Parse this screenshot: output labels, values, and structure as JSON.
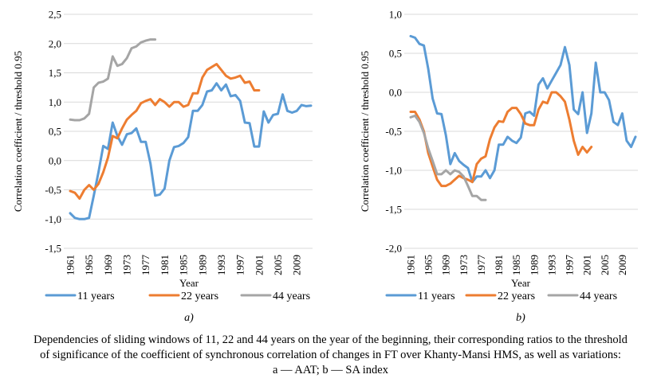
{
  "chart_data": [
    {
      "type": "line",
      "panel_label": "a)",
      "title": "",
      "xlabel": "Year",
      "ylabel": "Correlation coefficient / threshold 0.95",
      "ylim": [
        -1.5,
        2.5
      ],
      "xlim": [
        1961,
        2012
      ],
      "y_ticks": [
        "2,5",
        "2,0",
        "1,5",
        "1,0",
        "0,5",
        "0,0",
        "-0,5",
        "-1,0",
        "-1,5"
      ],
      "x_ticks": [
        "1961",
        "1965",
        "1969",
        "1973",
        "1977",
        "1981",
        "1985",
        "1989",
        "1993",
        "1997",
        "2001",
        "2005",
        "2009"
      ],
      "grid": true,
      "legend": "bottom",
      "series": [
        {
          "name": "11 years",
          "color": "#5b9bd5",
          "x": [
            1961,
            1962,
            1963,
            1964,
            1965,
            1966,
            1967,
            1968,
            1969,
            1970,
            1971,
            1972,
            1973,
            1974,
            1975,
            1976,
            1977,
            1978,
            1979,
            1980,
            1981,
            1982,
            1983,
            1984,
            1985,
            1986,
            1987,
            1988,
            1989,
            1990,
            1991,
            1992,
            1993,
            1994,
            1995,
            1996,
            1997,
            1998,
            1999,
            2000,
            2001,
            2002,
            2003,
            2004,
            2005,
            2006,
            2007,
            2008,
            2009,
            2010,
            2011,
            2012
          ],
          "values": [
            -0.9,
            -0.98,
            -1.0,
            -1.0,
            -0.98,
            -0.6,
            -0.2,
            0.25,
            0.2,
            0.65,
            0.42,
            0.27,
            0.45,
            0.47,
            0.55,
            0.32,
            0.32,
            -0.05,
            -0.6,
            -0.58,
            -0.48,
            0.0,
            0.23,
            0.25,
            0.3,
            0.4,
            0.85,
            0.85,
            0.95,
            1.18,
            1.2,
            1.32,
            1.2,
            1.3,
            1.1,
            1.12,
            1.02,
            0.65,
            0.64,
            0.24,
            0.24,
            0.84,
            0.65,
            0.78,
            0.8,
            1.13,
            0.85,
            0.82,
            0.85,
            0.95,
            0.93,
            0.94
          ]
        },
        {
          "name": "22 years",
          "color": "#ed7d31",
          "x": [
            1961,
            1962,
            1963,
            1964,
            1965,
            1966,
            1967,
            1968,
            1969,
            1970,
            1971,
            1972,
            1973,
            1974,
            1975,
            1976,
            1977,
            1978,
            1979,
            1980,
            1981,
            1982,
            1983,
            1984,
            1985,
            1986,
            1987,
            1988,
            1989,
            1990,
            1991,
            1992,
            1993,
            1994,
            1995,
            1996,
            1997,
            1998,
            1999,
            2000,
            2001
          ],
          "values": [
            -0.52,
            -0.55,
            -0.65,
            -0.5,
            -0.42,
            -0.5,
            -0.4,
            -0.2,
            0.05,
            0.42,
            0.38,
            0.55,
            0.7,
            0.78,
            0.85,
            0.98,
            1.02,
            1.05,
            0.95,
            1.05,
            1.0,
            0.92,
            1.0,
            1.0,
            0.92,
            0.95,
            1.15,
            1.15,
            1.42,
            1.55,
            1.6,
            1.65,
            1.55,
            1.45,
            1.4,
            1.42,
            1.45,
            1.33,
            1.35,
            1.2,
            1.2
          ]
        },
        {
          "name": "44 years",
          "color": "#a5a5a5",
          "x": [
            1961,
            1962,
            1963,
            1964,
            1965,
            1966,
            1967,
            1968,
            1969,
            1970,
            1971,
            1972,
            1973,
            1974,
            1975,
            1976,
            1977,
            1978,
            1979
          ],
          "values": [
            0.7,
            0.69,
            0.69,
            0.72,
            0.8,
            1.25,
            1.33,
            1.35,
            1.4,
            1.78,
            1.62,
            1.65,
            1.75,
            1.92,
            1.95,
            2.02,
            2.05,
            2.07,
            2.07
          ]
        }
      ]
    },
    {
      "type": "line",
      "panel_label": "b)",
      "title": "",
      "xlabel": "Year",
      "ylabel": "Correlation coefficient / threshold 0.95",
      "ylim": [
        -2.0,
        1.0
      ],
      "xlim": [
        1961,
        2012
      ],
      "y_ticks": [
        "1,0",
        "0,5",
        "0,0",
        "-0,5",
        "-1,0",
        "-1,5",
        "-2,0"
      ],
      "x_ticks": [
        "1961",
        "1965",
        "1969",
        "1973",
        "1977",
        "1981",
        "1985",
        "1989",
        "1993",
        "1997",
        "2001",
        "2005",
        "2009"
      ],
      "grid": true,
      "legend": "bottom",
      "series": [
        {
          "name": "11 years",
          "color": "#5b9bd5",
          "x": [
            1961,
            1962,
            1963,
            1964,
            1965,
            1966,
            1967,
            1968,
            1969,
            1970,
            1971,
            1972,
            1973,
            1974,
            1975,
            1976,
            1977,
            1978,
            1979,
            1980,
            1981,
            1982,
            1983,
            1984,
            1985,
            1986,
            1987,
            1988,
            1989,
            1990,
            1991,
            1992,
            1993,
            1994,
            1995,
            1996,
            1997,
            1998,
            1999,
            2000,
            2001,
            2002,
            2003,
            2004,
            2005,
            2006,
            2007,
            2008,
            2009,
            2010,
            2011,
            2012
          ],
          "values": [
            0.72,
            0.7,
            0.62,
            0.6,
            0.3,
            -0.08,
            -0.27,
            -0.28,
            -0.55,
            -0.92,
            -0.78,
            -0.88,
            -0.93,
            -0.97,
            -1.15,
            -1.08,
            -1.08,
            -1.0,
            -1.1,
            -1.0,
            -0.67,
            -0.67,
            -0.57,
            -0.62,
            -0.65,
            -0.58,
            -0.27,
            -0.25,
            -0.3,
            0.1,
            0.18,
            0.05,
            0.15,
            0.25,
            0.35,
            0.58,
            0.35,
            -0.22,
            -0.28,
            0.0,
            -0.52,
            -0.27,
            0.38,
            0.0,
            0.0,
            -0.1,
            -0.38,
            -0.42,
            -0.27,
            -0.62,
            -0.7,
            -0.57
          ]
        },
        {
          "name": "22 years",
          "color": "#ed7d31",
          "x": [
            1961,
            1962,
            1963,
            1964,
            1965,
            1966,
            1967,
            1968,
            1969,
            1970,
            1971,
            1972,
            1973,
            1974,
            1975,
            1976,
            1977,
            1978,
            1979,
            1980,
            1981,
            1982,
            1983,
            1984,
            1985,
            1986,
            1987,
            1988,
            1989,
            1990,
            1991,
            1992,
            1993,
            1994,
            1995,
            1996,
            1997,
            1998,
            1999,
            2000,
            2001,
            2002
          ],
          "values": [
            -0.25,
            -0.25,
            -0.35,
            -0.5,
            -0.78,
            -0.95,
            -1.12,
            -1.2,
            -1.2,
            -1.17,
            -1.12,
            -1.07,
            -1.1,
            -1.12,
            -1.15,
            -0.92,
            -0.85,
            -0.82,
            -0.6,
            -0.45,
            -0.37,
            -0.38,
            -0.25,
            -0.2,
            -0.2,
            -0.28,
            -0.4,
            -0.42,
            -0.42,
            -0.22,
            -0.12,
            -0.14,
            0.0,
            0.0,
            -0.05,
            -0.12,
            -0.35,
            -0.62,
            -0.8,
            -0.7,
            -0.77,
            -0.7
          ]
        },
        {
          "name": "44 years",
          "color": "#a5a5a5",
          "x": [
            1961,
            1962,
            1963,
            1964,
            1965,
            1966,
            1967,
            1968,
            1969,
            1970,
            1971,
            1972,
            1973,
            1974,
            1975,
            1976,
            1977,
            1978
          ],
          "values": [
            -0.32,
            -0.3,
            -0.38,
            -0.52,
            -0.72,
            -0.88,
            -1.05,
            -1.05,
            -1.0,
            -1.05,
            -1.0,
            -1.02,
            -1.08,
            -1.2,
            -1.33,
            -1.33,
            -1.38,
            -1.38
          ]
        }
      ]
    }
  ],
  "caption": {
    "line1": "Dependencies of sliding windows of 11, 22 and 44 years on the year of the beginning, their corresponding ratios to the threshold",
    "line2": "of significance of the coefficient of synchronous correlation of changes in FT over Khanty-Mansi HMS, as well as variations:",
    "line3": "a — AAT; b — SA index"
  }
}
